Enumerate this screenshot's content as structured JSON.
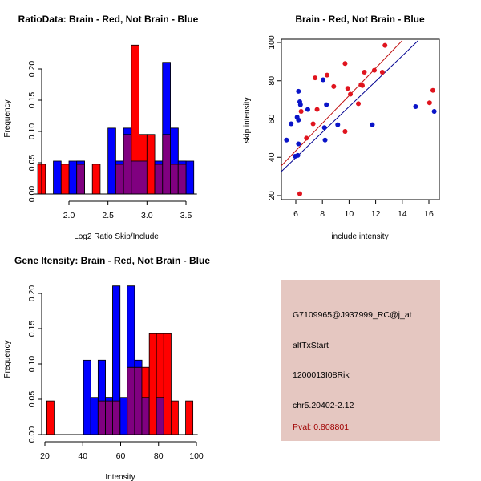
{
  "colors": {
    "red": "#ff0000",
    "blue": "#0000ff",
    "overlap": "#800080",
    "point_red": "#e0141e",
    "point_blue": "#0a14c8",
    "line_red": "#c01010",
    "line_blue": "#000090",
    "panel_bg": "#e5c7c1",
    "pval": "#a00000"
  },
  "chart_data": [
    {
      "type": "bar",
      "title": "RatioData: Brain - Red, Not Brain - Blue",
      "xlabel": "Log2 Ratio Skip/Include",
      "ylabel": "Frequency",
      "xlim": [
        1.6,
        3.6
      ],
      "ylim": [
        0,
        0.24
      ],
      "xticks": [
        2.0,
        2.5,
        3.0,
        3.5
      ],
      "xtick_labels": [
        "2.0",
        "2.5",
        "3.0",
        "3.5"
      ],
      "yticks": [
        0.0,
        0.05,
        0.1,
        0.15,
        0.2
      ],
      "ytick_labels": [
        "0.00",
        "0.05",
        "0.10",
        "0.15",
        "0.20"
      ],
      "bin_width": 0.1,
      "series": [
        {
          "name": "Brain",
          "color": "red",
          "bins": [
            [
              1.6,
              0.0476
            ],
            [
              1.9,
              0.0476
            ],
            [
              2.1,
              0.0476
            ],
            [
              2.3,
              0.0476
            ],
            [
              2.6,
              0.0476
            ],
            [
              2.7,
              0.0952
            ],
            [
              2.8,
              0.2381
            ],
            [
              2.9,
              0.0952
            ],
            [
              3.0,
              0.0952
            ],
            [
              3.1,
              0.0476
            ],
            [
              3.2,
              0.0952
            ],
            [
              3.3,
              0.0476
            ],
            [
              3.4,
              0.0476
            ]
          ]
        },
        {
          "name": "Not Brain",
          "color": "blue",
          "bins": [
            [
              1.8,
              0.0526
            ],
            [
              2.0,
              0.0526
            ],
            [
              2.1,
              0.0526
            ],
            [
              2.5,
              0.1053
            ],
            [
              2.6,
              0.0526
            ],
            [
              2.7,
              0.1053
            ],
            [
              2.8,
              0.0526
            ],
            [
              2.9,
              0.0526
            ],
            [
              3.1,
              0.0526
            ],
            [
              3.2,
              0.2105
            ],
            [
              3.3,
              0.1053
            ],
            [
              3.4,
              0.0526
            ],
            [
              3.5,
              0.0526
            ]
          ]
        }
      ]
    },
    {
      "type": "scatter",
      "title": "Brain - Red, Not Brain - Blue",
      "xlabel": "include intensity",
      "ylabel": "skip intensity",
      "xlim": [
        4.9,
        16.8
      ],
      "ylim": [
        18,
        102
      ],
      "xticks": [
        6,
        8,
        10,
        12,
        14,
        16
      ],
      "xtick_labels": [
        "6",
        "8",
        "10",
        "12",
        "14",
        "16"
      ],
      "yticks": [
        20,
        40,
        60,
        80,
        100
      ],
      "ytick_labels": [
        "20",
        "40",
        "60",
        "80",
        "100"
      ],
      "series": [
        {
          "name": "Brain",
          "color": "red",
          "points": [
            [
              6.3,
              21
            ],
            [
              6.4,
              64
            ],
            [
              6.8,
              50
            ],
            [
              7.3,
              57.5
            ],
            [
              7.45,
              81.5
            ],
            [
              7.6,
              65
            ],
            [
              8.35,
              83
            ],
            [
              8.85,
              77
            ],
            [
              9.7,
              89
            ],
            [
              9.7,
              53.5
            ],
            [
              9.9,
              76
            ],
            [
              10.1,
              73
            ],
            [
              10.7,
              68
            ],
            [
              10.9,
              78
            ],
            [
              11.0,
              77.5
            ],
            [
              11.15,
              84.5
            ],
            [
              11.9,
              85.5
            ],
            [
              12.5,
              84.5
            ],
            [
              12.7,
              98.5
            ],
            [
              16.05,
              68.5
            ],
            [
              16.3,
              75
            ]
          ],
          "fit_line": [
            [
              4.9,
              35.5
            ],
            [
              14.0,
              101
            ]
          ]
        },
        {
          "name": "Not Brain",
          "color": "blue",
          "points": [
            [
              5.3,
              49
            ],
            [
              5.65,
              57.5
            ],
            [
              5.95,
              40.5
            ],
            [
              6.1,
              61
            ],
            [
              6.15,
              41
            ],
            [
              6.2,
              59.5
            ],
            [
              6.2,
              47
            ],
            [
              6.2,
              74.5
            ],
            [
              6.3,
              69
            ],
            [
              6.35,
              67.5
            ],
            [
              6.9,
              65
            ],
            [
              8.05,
              80.5
            ],
            [
              8.15,
              55.5
            ],
            [
              8.2,
              49
            ],
            [
              8.3,
              67.5
            ],
            [
              9.15,
              57
            ],
            [
              11.75,
              57
            ],
            [
              15.0,
              66.5
            ],
            [
              16.4,
              64
            ]
          ],
          "fit_line": [
            [
              4.9,
              32.5
            ],
            [
              15.2,
              101
            ]
          ]
        }
      ]
    },
    {
      "type": "bar",
      "title": "Gene Itensity: Brain - Red, Not Brain - Blue",
      "xlabel": "Intensity",
      "ylabel": "Frequency",
      "xlim": [
        20,
        100
      ],
      "ylim": [
        0,
        0.21
      ],
      "xticks": [
        20,
        40,
        60,
        80,
        100
      ],
      "xtick_labels": [
        "20",
        "40",
        "60",
        "80",
        "100"
      ],
      "yticks": [
        0.0,
        0.05,
        0.1,
        0.15,
        0.2
      ],
      "ytick_labels": [
        "0.00",
        "0.05",
        "0.10",
        "0.15",
        "0.20"
      ],
      "bin_width": 3.85,
      "series": [
        {
          "name": "Brain",
          "color": "red",
          "bins": [
            [
              21,
              0.0476
            ],
            [
              48.1,
              0.0476
            ],
            [
              52.0,
              0.0476
            ],
            [
              55.8,
              0.0476
            ],
            [
              63.5,
              0.0952
            ],
            [
              67.4,
              0.0952
            ],
            [
              71.2,
              0.0952
            ],
            [
              75.1,
              0.1429
            ],
            [
              78.9,
              0.1429
            ],
            [
              82.8,
              0.1429
            ],
            [
              86.6,
              0.0476
            ],
            [
              94.3,
              0.0476
            ]
          ]
        },
        {
          "name": "Not Brain",
          "color": "blue",
          "bins": [
            [
              40.4,
              0.1053
            ],
            [
              44.2,
              0.0526
            ],
            [
              48.1,
              0.1053
            ],
            [
              52.0,
              0.0526
            ],
            [
              55.8,
              0.2105
            ],
            [
              59.7,
              0.0526
            ],
            [
              63.5,
              0.2105
            ],
            [
              67.4,
              0.1053
            ],
            [
              71.2,
              0.0526
            ],
            [
              78.9,
              0.0526
            ]
          ]
        }
      ]
    }
  ],
  "info_panel": {
    "probe_id": "G7109965@J937999_RC@j_at",
    "event_type": "altTxStart",
    "gene": "1200013I08Rik",
    "location": "chr5.20402-2.12",
    "pval": "Pval: 0.808801"
  }
}
